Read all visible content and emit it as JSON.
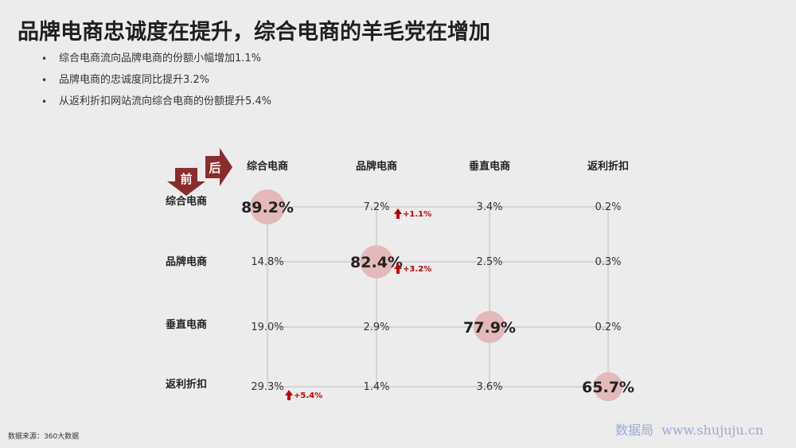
{
  "title": "品牌电商忠诚度在提升，综合电商的羊毛党在增加",
  "bullets": [
    "综合电商流向品牌电商的份额小幅增加1.1%",
    "品牌电商的忠诚度同比提升3.2%",
    "从返利折扣网站流向综合电商的份额提升5.4%"
  ],
  "source": "数据来源：360大数据",
  "watermark": {
    "cn": "数据局",
    "url": "www.shujuju.cn"
  },
  "legend": {
    "before": "前",
    "after": "后"
  },
  "colors": {
    "accent": "#8b2c2c",
    "bubble": "#e3b9b9",
    "up_arrow": "#c00000",
    "gridline": "#bdbdbd"
  },
  "chart_data": {
    "type": "heatmap",
    "title": "",
    "row_axis_label": "前",
    "col_axis_label": "后",
    "rows": [
      "综合电商",
      "品牌电商",
      "垂直电商",
      "返利折扣"
    ],
    "columns": [
      "综合电商",
      "品牌电商",
      "垂直电商",
      "返利折扣"
    ],
    "values": [
      [
        89.2,
        7.2,
        3.4,
        0.2
      ],
      [
        14.8,
        82.4,
        2.5,
        0.3
      ],
      [
        19.0,
        2.9,
        77.9,
        0.2
      ],
      [
        29.3,
        1.4,
        3.6,
        65.7
      ]
    ],
    "labels": [
      [
        "89.2%",
        "7.2%",
        "3.4%",
        "0.2%"
      ],
      [
        "14.8%",
        "82.4%",
        "2.5%",
        "0.3%"
      ],
      [
        "19.0%",
        "2.9%",
        "77.9%",
        "0.2%"
      ],
      [
        "29.3%",
        "1.4%",
        "3.6%",
        "65.7%"
      ]
    ],
    "annotations": [
      {
        "row": 0,
        "col": 1,
        "text": "+1.1%",
        "direction": "up"
      },
      {
        "row": 1,
        "col": 1,
        "text": "+3.2%",
        "direction": "up"
      },
      {
        "row": 3,
        "col": 0,
        "text": "+5.4%",
        "direction": "up"
      }
    ],
    "grid": true,
    "bubbles_on_diagonal": true
  }
}
